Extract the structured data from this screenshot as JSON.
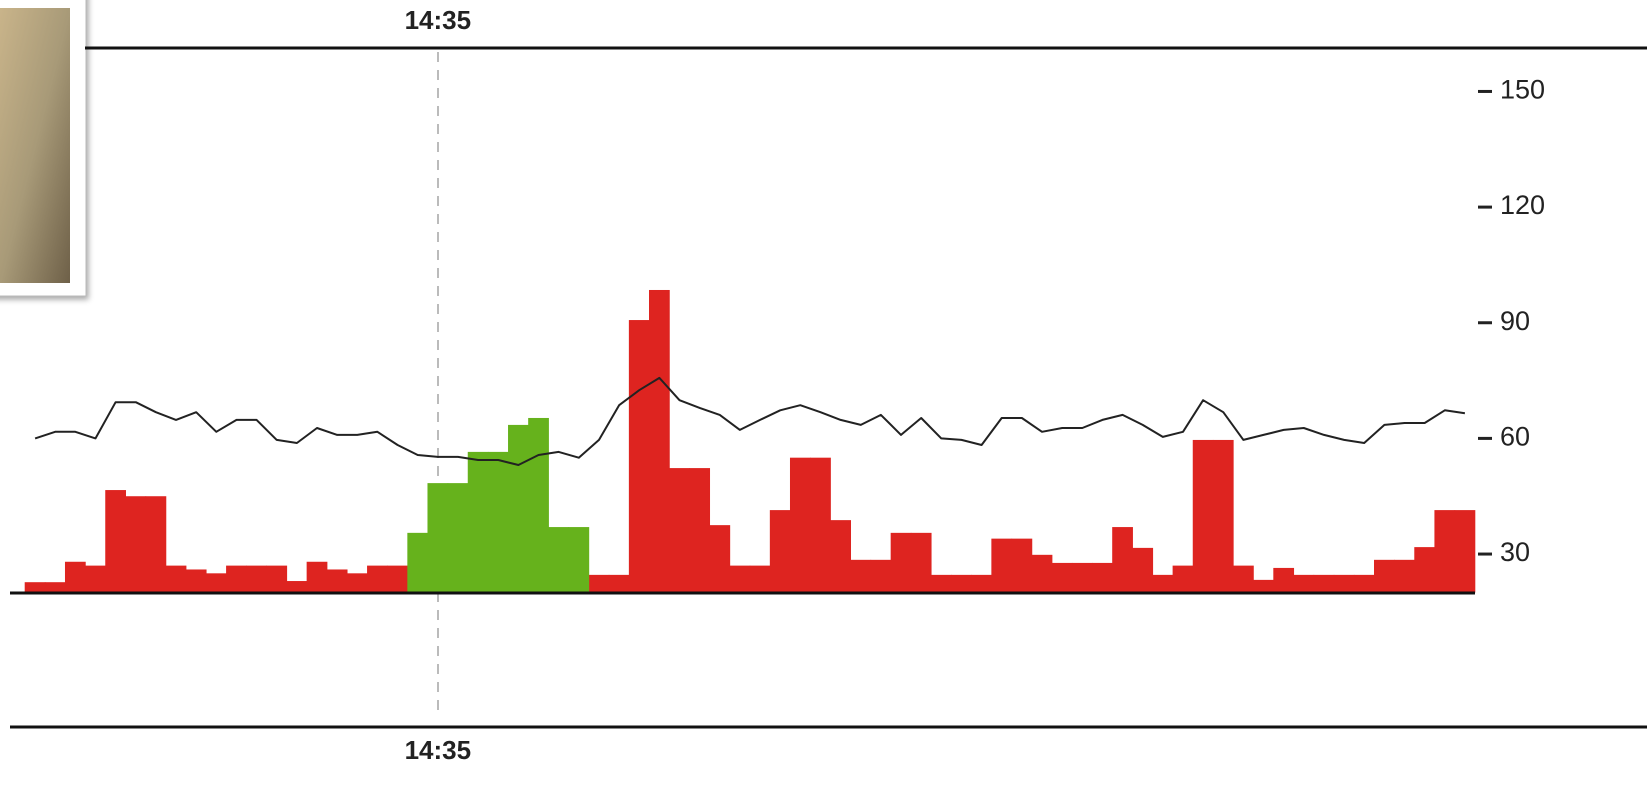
{
  "chart_data": {
    "type": "bar",
    "categories": [
      null,
      null,
      null,
      null,
      null,
      null,
      null,
      null,
      null,
      null,
      null,
      null,
      null,
      null,
      null,
      null,
      null,
      null,
      null,
      null,
      "14:35",
      null,
      null,
      null,
      null,
      null,
      null,
      null,
      null,
      null,
      null,
      null,
      null,
      null,
      null,
      null,
      null,
      null,
      null,
      null,
      null,
      null,
      null,
      null,
      null,
      null,
      null,
      null,
      null,
      null,
      null,
      null,
      null,
      null,
      null,
      null,
      null,
      null,
      null,
      null,
      null,
      null,
      null,
      null,
      null,
      null,
      null,
      null,
      null,
      null,
      null,
      null
    ],
    "series": [
      {
        "type": "bar",
        "color": "#de2420",
        "values": [
          22.7,
          22.7,
          28,
          27,
          46.6,
          45,
          45,
          27,
          26,
          25,
          27,
          27,
          27,
          23,
          28,
          26,
          25,
          27,
          27,
          null,
          null,
          null,
          null,
          null,
          null,
          null,
          null,
          null,
          24.6,
          24.6,
          90.7,
          98.5,
          52.3,
          52.3,
          37.5,
          27,
          27,
          41.4,
          55,
          55,
          38.8,
          28.5,
          28.5,
          35.5,
          35.5,
          24.6,
          24.6,
          24.6,
          34,
          34,
          29.8,
          27.7,
          27.7,
          27.7,
          37,
          31.6,
          24.6,
          27,
          59.6,
          59.6,
          27,
          23.3,
          26.4,
          24.6,
          24.6,
          24.6,
          24.6,
          28.5,
          28.5,
          31.8,
          41.4,
          41.4
        ]
      },
      {
        "type": "bar",
        "color": "#66b21c",
        "values": [
          null,
          null,
          null,
          null,
          null,
          null,
          null,
          null,
          null,
          null,
          null,
          null,
          null,
          null,
          null,
          null,
          null,
          null,
          null,
          35.5,
          48.4,
          48.4,
          56.5,
          56.5,
          63.5,
          65.3,
          37,
          37,
          null,
          null,
          null,
          null,
          null,
          null,
          null,
          null,
          null,
          null,
          null,
          null,
          null,
          null,
          null,
          null,
          null,
          null,
          null,
          null,
          null,
          null,
          null,
          null,
          null,
          null,
          null,
          null,
          null,
          null,
          null,
          null,
          null,
          null,
          null,
          null,
          null,
          null,
          null,
          null,
          null,
          null,
          null,
          null
        ]
      },
      {
        "type": "line",
        "color": "#222222",
        "values": [
          60,
          61.7,
          61.7,
          60,
          69.4,
          69.4,
          66.8,
          64.8,
          66.8,
          61.7,
          64.8,
          64.8,
          59.6,
          58.8,
          62.7,
          60.9,
          60.9,
          61.7,
          58.3,
          55.7,
          55.2,
          55.2,
          54.4,
          54.4,
          53.1,
          55.7,
          56.5,
          55,
          59.6,
          68.6,
          72.5,
          75.7,
          69.9,
          67.9,
          66.1,
          62.2,
          64.8,
          67.3,
          68.6,
          66.8,
          64.8,
          63.5,
          66.1,
          60.9,
          65.3,
          60,
          59.6,
          58.3,
          65.3,
          65.3,
          61.7,
          62.7,
          62.7,
          64.8,
          66.1,
          63.5,
          60.4,
          61.7,
          69.9,
          66.8,
          59.6,
          60.9,
          62.2,
          62.7,
          60.9,
          59.6,
          58.8,
          63.5,
          64,
          64,
          67.3,
          66.5
        ]
      }
    ],
    "ylim": [
      20,
      160
    ],
    "yticks": [
      30,
      60,
      90,
      120,
      150
    ]
  }
}
